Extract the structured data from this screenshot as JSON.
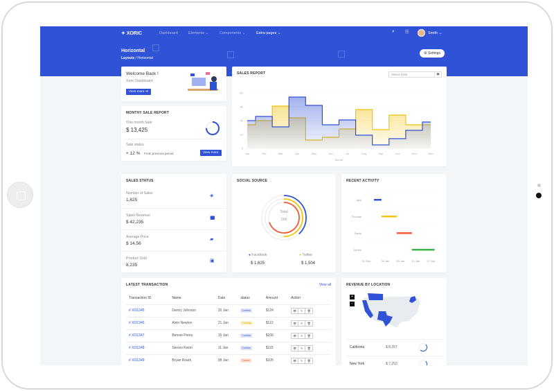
{
  "brand": "XORIC",
  "nav": [
    {
      "label": "Dashboard"
    },
    {
      "label": "Elements"
    },
    {
      "label": "Components"
    },
    {
      "label": "Extra pages"
    }
  ],
  "user": {
    "name": "Smith"
  },
  "page": {
    "title": "Horizontal",
    "breadcrumb": [
      "Layouts",
      "Horizontal"
    ],
    "settings_label": "Settings"
  },
  "welcome": {
    "title": "Welcome Back !",
    "subtitle": "Xoric Dashboard",
    "button": "View more"
  },
  "monthly": {
    "title": "MONTHY SALE REPORT",
    "this_month_label": "This month Sale",
    "this_month_value": "$ 13,425",
    "status_label": "Sale status",
    "status_value": "+ 12 %",
    "status_note": "From previous period",
    "button": "View more",
    "progress": 0.75
  },
  "chart_data": [
    {
      "type": "area",
      "title": "SALES REPORT",
      "date_placeholder": "Select Date",
      "xlabel": "Month",
      "ylim": [
        0,
        80
      ],
      "yticks": [
        0,
        20,
        40,
        60,
        80
      ],
      "categories": [
        "Jan",
        "Feb",
        "Mar",
        "Apr",
        "May",
        "Jun",
        "Jul",
        "Aug",
        "Sep",
        "Oct",
        "Nov",
        "Dec"
      ],
      "series": [
        {
          "color": "#2f52d6",
          "values": [
            40,
            46,
            31,
            74,
            62,
            34,
            41,
            19,
            5,
            14,
            26,
            38
          ]
        },
        {
          "color": "#f1c40f",
          "values": [
            34,
            40,
            61,
            44,
            12,
            16,
            28,
            56,
            27,
            48,
            34,
            34
          ]
        }
      ]
    },
    {
      "type": "radialbar",
      "title": "SOCIAL SOURCE",
      "center_label": "Total",
      "center_value": "166",
      "series": [
        {
          "name": "Facebook",
          "value": "$ 1,625",
          "fraction": 0.38,
          "color": "#2f52d6"
        },
        {
          "name": "Twitter",
          "value": "$ 1,504",
          "fraction": 0.5,
          "color": "#f1c40f"
        },
        {
          "fraction": 0.7,
          "color": "#f25a38"
        }
      ]
    },
    {
      "type": "timeline",
      "title": "RECENT ACTIVITY",
      "xticks": [
        "31 Dec",
        "05 Jan",
        "09 Jan",
        "13 Jan",
        "17 Jan"
      ],
      "rows": [
        {
          "name": "Jack",
          "start": "02 Jan",
          "end": "04 Jan",
          "color": "#2f52d6"
        },
        {
          "name": "Thomas",
          "start": "04 Jan",
          "end": "08 Jan",
          "color": "#f1c40f"
        },
        {
          "name": "David",
          "start": "08 Jan",
          "end": "12 Jan",
          "color": "#f25a38"
        },
        {
          "name": "James",
          "start": "12 Jan",
          "end": "18 Jan",
          "color": "#3cb44b"
        }
      ]
    }
  ],
  "sales_status": {
    "title": "SALES STATUS",
    "items": [
      {
        "label": "Number of Sales",
        "value": "1,625",
        "icon": "layers-icon"
      },
      {
        "label": "Sales Revenue",
        "value": "$ 42,235",
        "icon": "bar-chart-icon"
      },
      {
        "label": "Average Price",
        "value": "$ 14.56",
        "icon": "ticket-icon"
      },
      {
        "label": "Product Sold",
        "value": "8,235",
        "icon": "box-icon"
      }
    ]
  },
  "transactions": {
    "title": "LATEST TRANSACTION",
    "view_all": "View all",
    "headers": [
      "Transaction ID",
      "Name",
      "Date",
      "status",
      "Amount",
      "Action"
    ],
    "rows": [
      {
        "id": "# XO1345",
        "name": "Danny Johnson",
        "date": "26 Jan",
        "status": "Confirm",
        "amount": "$124"
      },
      {
        "id": "# XO1346",
        "name": "Alvin Newton",
        "date": "21 Jan",
        "status": "Pending",
        "amount": "$112"
      },
      {
        "id": "# XO1347",
        "name": "Bennie Perez",
        "date": "15 Jan",
        "status": "Confirm",
        "amount": "$106"
      },
      {
        "id": "# XO1348",
        "name": "Steven Kwon",
        "date": "11 Jan",
        "status": "Confirm",
        "amount": "$115"
      },
      {
        "id": "# XO1349",
        "name": "Bryan Roark",
        "date": "08 Jan",
        "status": "Cancel",
        "amount": "$105"
      }
    ]
  },
  "location": {
    "title": "REVENUE BY LOCATION",
    "zoom_in": "+",
    "zoom_out": "-",
    "rows": [
      {
        "state": "California",
        "value": "$ 8,257"
      },
      {
        "state": "New York",
        "value": "$ 7,253"
      }
    ]
  }
}
